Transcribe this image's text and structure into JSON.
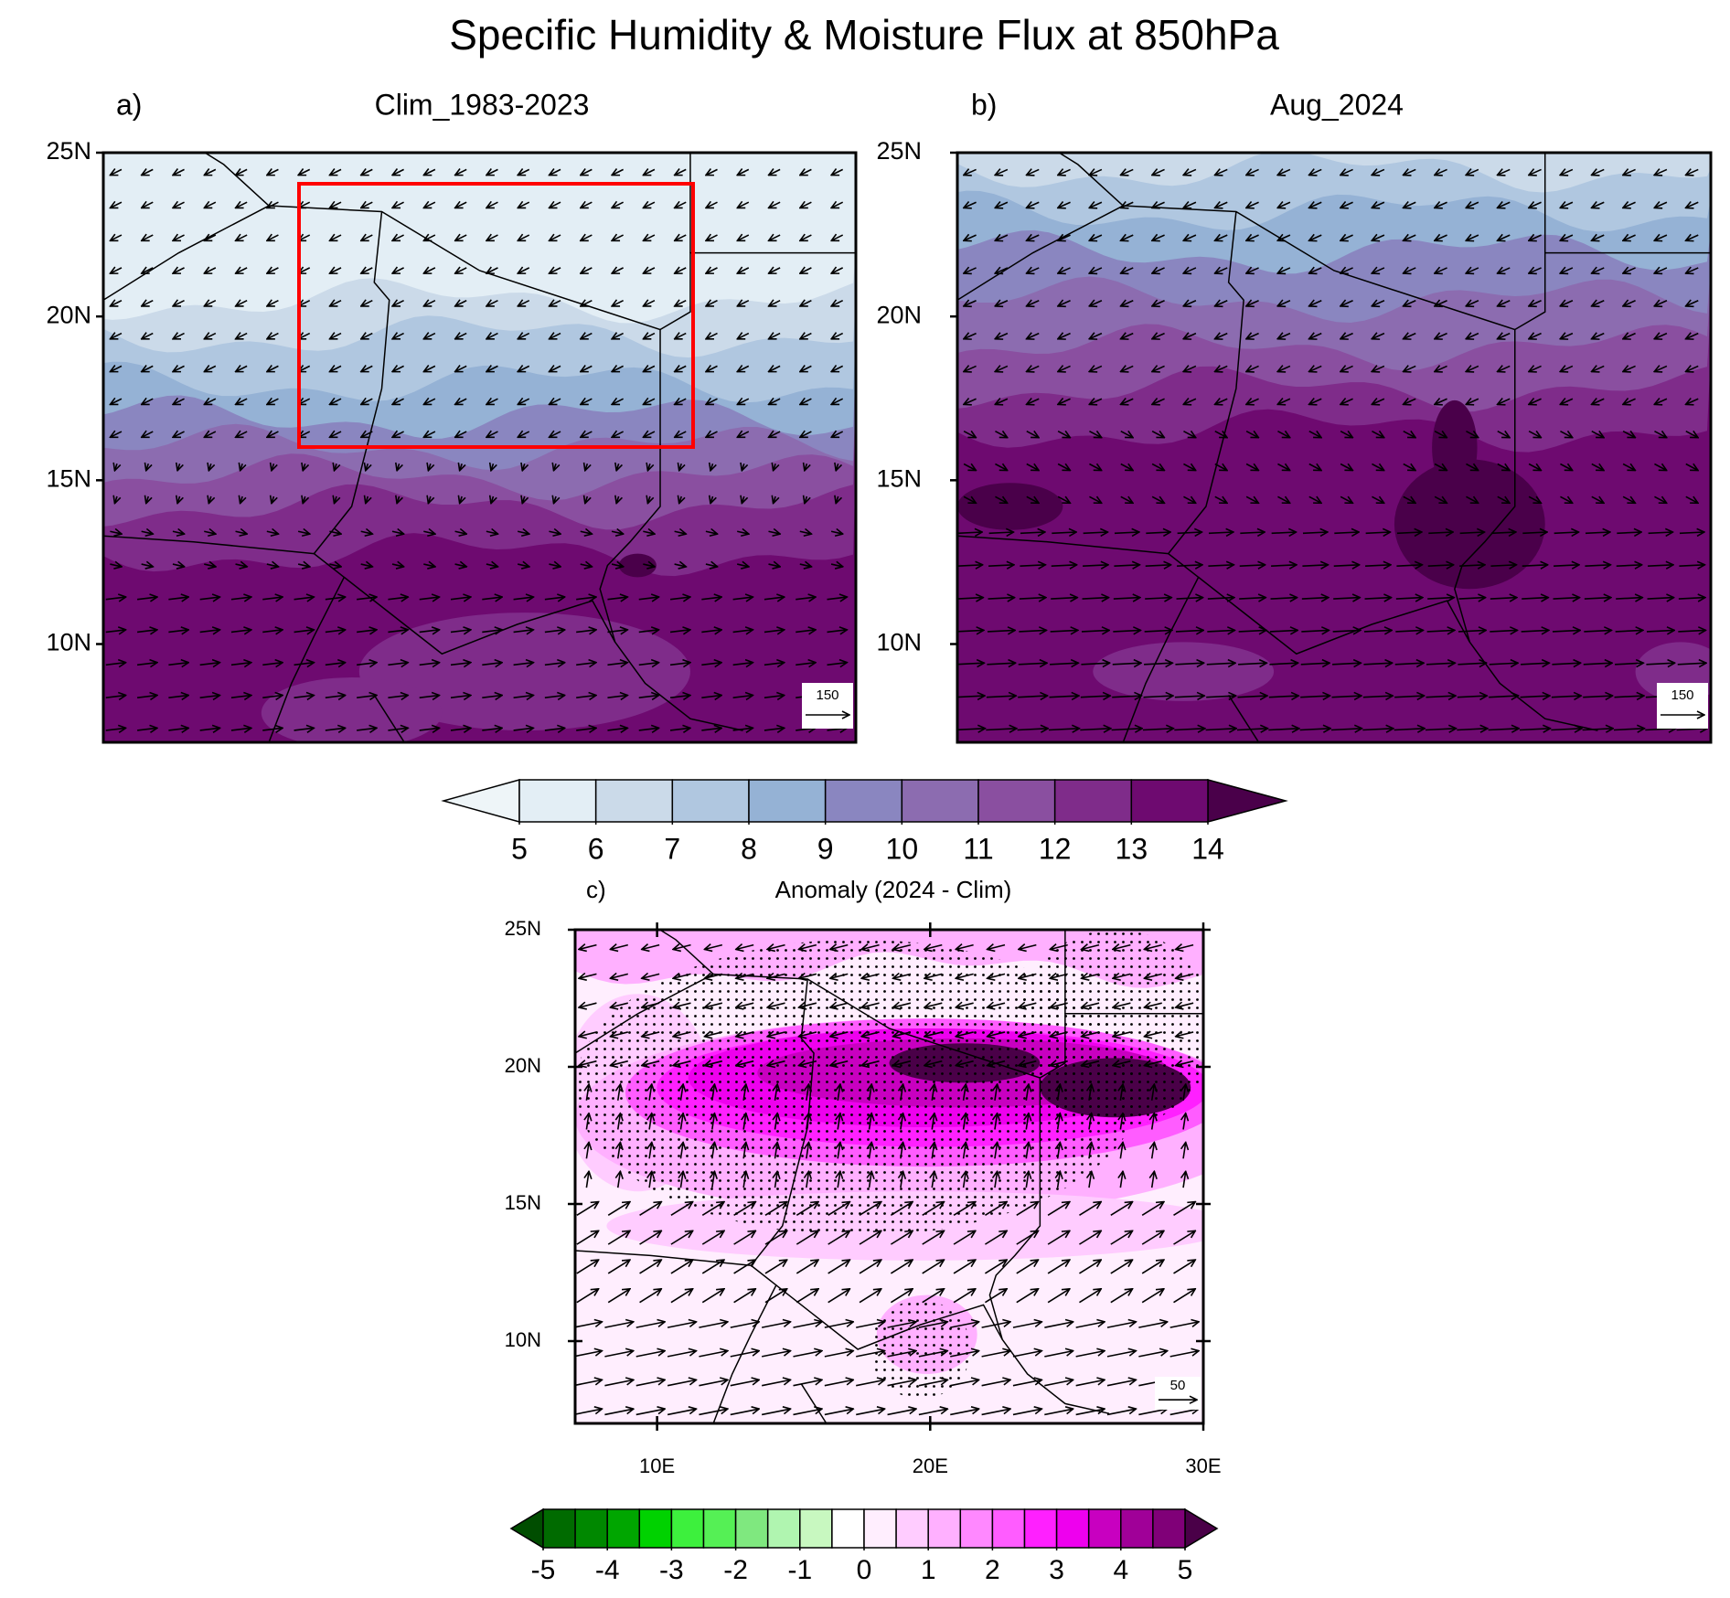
{
  "title": "Specific Humidity & Moisture Flux at 850hPa",
  "panels": [
    {
      "label": "a)",
      "title": "Clim_1983-2023",
      "ylim": [
        7,
        25
      ],
      "yticks": [
        {
          "value": 25,
          "label": "25N"
        },
        {
          "value": 20,
          "label": "20N"
        },
        {
          "value": 15,
          "label": "15N"
        },
        {
          "value": 10,
          "label": "10N"
        }
      ],
      "reference_vector": 150,
      "highlight_box_color": "#ff0000"
    },
    {
      "label": "b)",
      "title": "Aug_2024",
      "ylim": [
        7,
        25
      ],
      "yticks": [
        {
          "value": 25,
          "label": "25N"
        },
        {
          "value": 20,
          "label": "20N"
        },
        {
          "value": 15,
          "label": "15N"
        },
        {
          "value": 10,
          "label": "10N"
        }
      ],
      "reference_vector": 150
    },
    {
      "label": "c)",
      "title": "Anomaly (2024 - Clim)",
      "ylim": [
        7,
        25
      ],
      "yticks": [
        {
          "value": 25,
          "label": "25N"
        },
        {
          "value": 20,
          "label": "20N"
        },
        {
          "value": 15,
          "label": "15N"
        },
        {
          "value": 10,
          "label": "10N"
        }
      ],
      "xlim": [
        7,
        30
      ],
      "xticks": [
        {
          "value": 10,
          "label": "10E"
        },
        {
          "value": 20,
          "label": "20E"
        },
        {
          "value": 30,
          "label": "30E"
        }
      ],
      "reference_vector": 50
    }
  ],
  "colorbars": [
    {
      "levels": [
        5,
        6,
        7,
        8,
        9,
        10,
        11,
        12,
        13,
        14
      ],
      "colors": [
        "#e3eef5",
        "#cbdae9",
        "#b0c7e0",
        "#95b2d5",
        "#8a86c0",
        "#8c6cb0",
        "#8a4fa0",
        "#7f2c8a",
        "#6e0a70"
      ],
      "extend_colors": [
        "#eef5f8",
        "#4a004a"
      ]
    },
    {
      "levels": [
        -5,
        -4,
        -3,
        -2,
        -1,
        0,
        1,
        2,
        3,
        4,
        5
      ],
      "colors": [
        "#006b00",
        "#008800",
        "#00a600",
        "#00d200",
        "#3df03d",
        "#55f055",
        "#7fe87f",
        "#b0f5b0",
        "#c8f8c0",
        "#ffffff",
        "#ffeefe",
        "#ffccff",
        "#ffb0ff",
        "#ff88ff",
        "#ff5cff",
        "#ff20ff",
        "#ee00ee",
        "#c800c0",
        "#a00098",
        "#800078"
      ],
      "extend_colors": [
        "#004d00",
        "#4a0048"
      ]
    }
  ]
}
